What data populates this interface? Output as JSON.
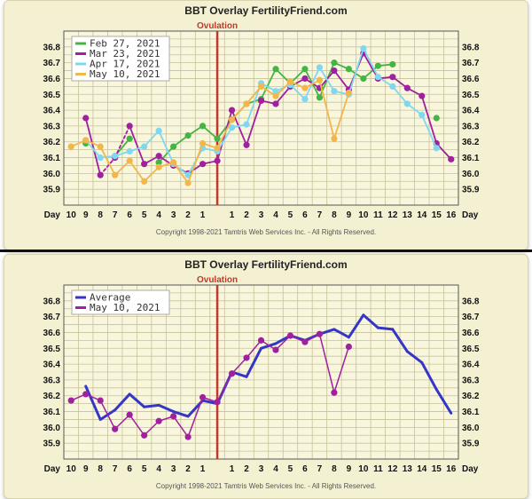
{
  "chart_data": [
    {
      "type": "line",
      "title": "BBT Overlay FertilityFriend.com",
      "annotation": "Ovulation",
      "copyright": "Copyright 1998-2021 Tamtris Web Services Inc. - All Rights Reserved.",
      "xlabel": "Day",
      "x_ticks": [
        "10",
        "9",
        "8",
        "7",
        "6",
        "5",
        "4",
        "3",
        "2",
        "1",
        "",
        "1",
        "2",
        "3",
        "4",
        "5",
        "6",
        "7",
        "8",
        "9",
        "10",
        "11",
        "12",
        "13",
        "14",
        "15",
        "16"
      ],
      "x_axis_label": "Day",
      "ylim": [
        35.8,
        36.9
      ],
      "y_ticks": [
        "36.8",
        "36.7",
        "36.6",
        "36.5",
        "36.4",
        "36.3",
        "36.2",
        "36.1",
        "36.0",
        "35.9"
      ],
      "ovulation_index": 10,
      "grid": true,
      "legend_position": "top-left",
      "series": [
        {
          "name": "Feb 27, 2021",
          "color": "#44b544",
          "dots": true,
          "values": [
            null,
            36.19,
            null,
            36.11,
            36.22,
            null,
            36.07,
            36.17,
            36.24,
            36.3,
            36.22,
            36.34,
            36.44,
            36.47,
            36.66,
            36.57,
            36.66,
            36.48,
            36.7,
            36.66,
            36.6,
            36.68,
            36.69,
            null,
            null,
            36.35,
            null
          ],
          "dashed_segments": [
            [
              1,
              3
            ]
          ]
        },
        {
          "name": "Mar 23, 2021",
          "color": "#a0209f",
          "dots": true,
          "values": [
            null,
            36.35,
            35.99,
            36.1,
            36.3,
            36.06,
            36.11,
            36.05,
            36.0,
            36.06,
            36.08,
            36.4,
            36.18,
            36.46,
            36.44,
            36.55,
            36.6,
            36.54,
            36.65,
            36.53,
            36.76,
            36.6,
            36.61,
            36.54,
            36.49,
            36.19,
            36.09
          ],
          "dashed_segments": [
            [
              2,
              4
            ]
          ]
        },
        {
          "name": "Apr 17, 2021",
          "color": "#7fd8f0",
          "dots": true,
          "values": [
            null,
            36.21,
            36.1,
            36.11,
            36.14,
            36.17,
            36.27,
            36.06,
            35.99,
            36.16,
            36.14,
            36.29,
            36.31,
            36.57,
            36.52,
            36.56,
            36.47,
            36.67,
            36.52,
            36.5,
            36.79,
            36.61,
            36.55,
            36.44,
            36.37,
            36.16,
            null
          ],
          "dashed_segments": []
        },
        {
          "name": "May 10, 2021",
          "color": "#f2b64a",
          "dots": true,
          "values": [
            36.17,
            36.21,
            36.17,
            35.99,
            36.08,
            35.95,
            36.04,
            36.07,
            35.94,
            36.19,
            36.16,
            36.34,
            36.44,
            36.55,
            36.49,
            36.58,
            36.54,
            36.59,
            36.22,
            36.51,
            null,
            null,
            null,
            null,
            null,
            null,
            null
          ],
          "dashed_segments": []
        }
      ]
    },
    {
      "type": "line",
      "title": "BBT Overlay FertilityFriend.com",
      "annotation": "Ovulation",
      "copyright": "Copyright 1998-2021 Tamtris Web Services Inc. - All Rights Reserved.",
      "xlabel": "Day",
      "x_ticks": [
        "10",
        "9",
        "8",
        "7",
        "6",
        "5",
        "4",
        "3",
        "2",
        "1",
        "",
        "1",
        "2",
        "3",
        "4",
        "5",
        "6",
        "7",
        "8",
        "9",
        "10",
        "11",
        "12",
        "13",
        "14",
        "15",
        "16"
      ],
      "x_axis_label": "Day",
      "ylim": [
        35.8,
        36.9
      ],
      "y_ticks": [
        "36.8",
        "36.7",
        "36.6",
        "36.5",
        "36.4",
        "36.3",
        "36.2",
        "36.1",
        "36.0",
        "35.9"
      ],
      "ovulation_index": 10,
      "grid": true,
      "legend_position": "top-left",
      "series": [
        {
          "name": "Average",
          "color": "#3535c8",
          "dots": false,
          "width": 3,
          "values": [
            null,
            36.26,
            36.05,
            36.11,
            36.21,
            36.13,
            36.14,
            36.1,
            36.07,
            36.17,
            36.15,
            36.35,
            36.32,
            36.5,
            36.53,
            36.58,
            36.55,
            36.59,
            36.62,
            36.57,
            36.71,
            36.63,
            36.62,
            36.48,
            36.41,
            36.24,
            36.09
          ],
          "dashed_segments": []
        },
        {
          "name": "May 10, 2021",
          "color": "#a0209f",
          "dots": true,
          "width": 1.5,
          "values": [
            36.17,
            36.21,
            36.17,
            35.99,
            36.08,
            35.95,
            36.04,
            36.07,
            35.94,
            36.19,
            36.16,
            36.34,
            36.44,
            36.55,
            36.49,
            36.58,
            36.54,
            36.59,
            36.22,
            36.51,
            null,
            null,
            null,
            null,
            null,
            null,
            null
          ],
          "dashed_segments": []
        }
      ]
    }
  ]
}
